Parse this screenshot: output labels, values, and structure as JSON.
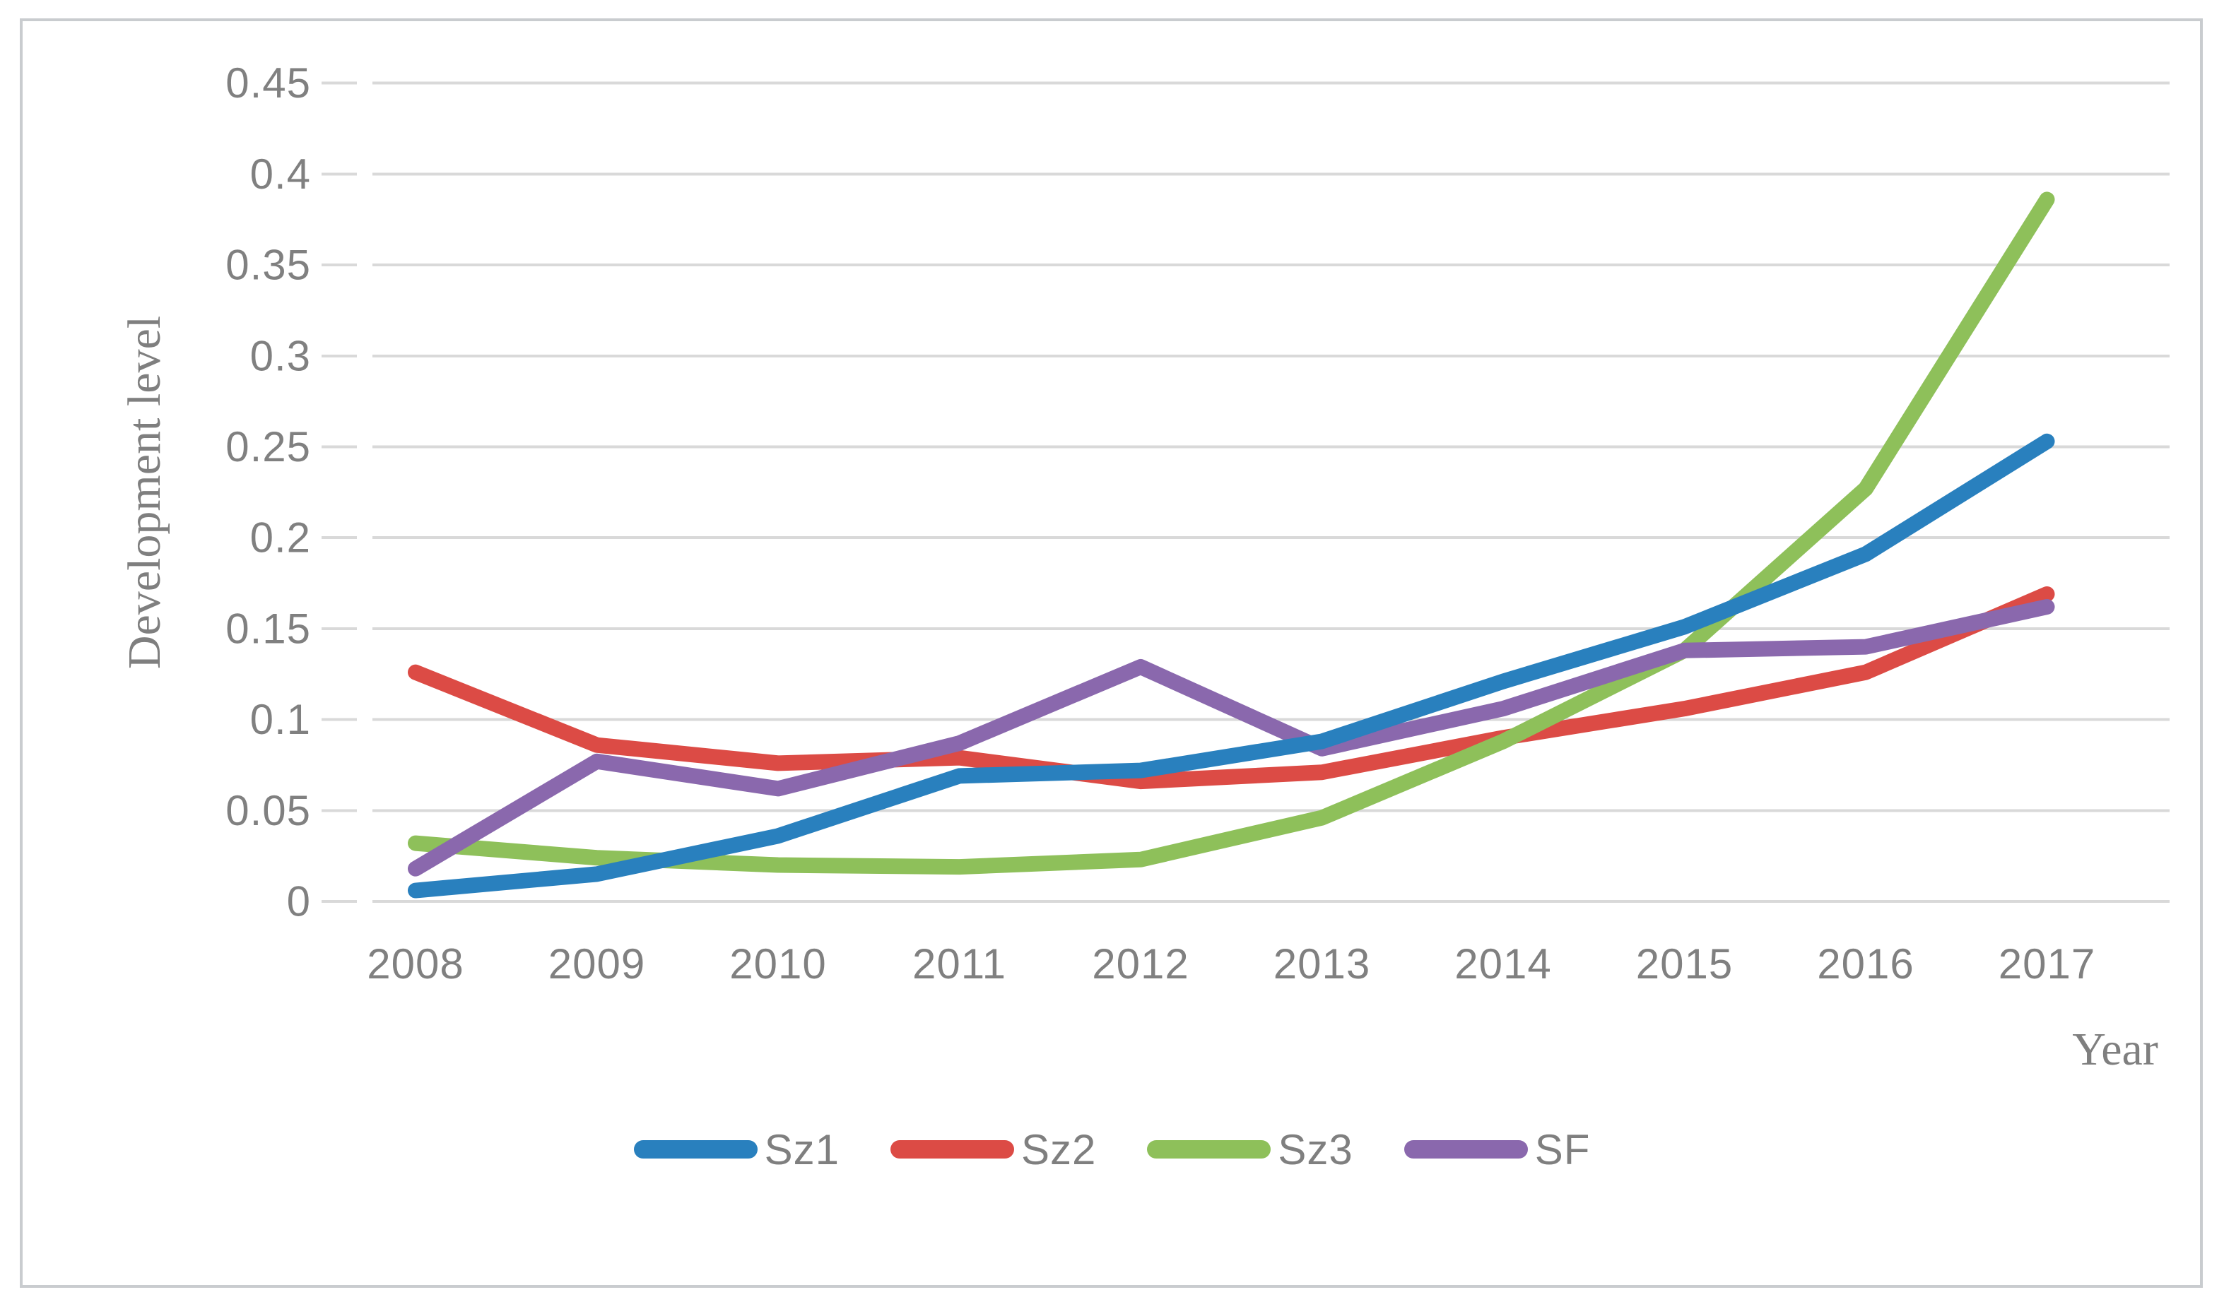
{
  "figure": {
    "background": "#FFFFFF",
    "border_color": "#C9CCCF",
    "grid_color": "#D9D9D9",
    "text_color": "#808080"
  },
  "chart_data": {
    "type": "line",
    "title": "",
    "xlabel": "Year",
    "ylabel": "Development level",
    "categories": [
      "2008",
      "2009",
      "2010",
      "2011",
      "2012",
      "2013",
      "2014",
      "2015",
      "2016",
      "2017"
    ],
    "series": [
      {
        "name": "Sz1",
        "color": "#2980BE",
        "values": [
          0.006,
          0.015,
          0.036,
          0.069,
          0.072,
          0.088,
          0.121,
          0.151,
          0.191,
          0.253
        ]
      },
      {
        "name": "Sz2",
        "color": "#DC4B45",
        "values": [
          0.126,
          0.086,
          0.076,
          0.079,
          0.066,
          0.071,
          0.09,
          0.106,
          0.126,
          0.169
        ]
      },
      {
        "name": "Sz3",
        "color": "#8EC05A",
        "values": [
          0.032,
          0.024,
          0.02,
          0.019,
          0.023,
          0.046,
          0.088,
          0.138,
          0.227,
          0.386
        ]
      },
      {
        "name": "SF",
        "color": "#8A68AD",
        "values": [
          0.018,
          0.077,
          0.062,
          0.087,
          0.129,
          0.084,
          0.106,
          0.138,
          0.14,
          0.162
        ]
      }
    ],
    "ylim": [
      0,
      0.45
    ],
    "ytick_step": 0.05,
    "ytick_labels": [
      "0",
      "0.05",
      "0.1",
      "0.15",
      "0.2",
      "0.25",
      "0.3",
      "0.35",
      "0.4",
      "0.45"
    ],
    "grid": "horizontal",
    "legend_position": "bottom",
    "legend_entries": [
      "Sz1",
      "Sz2",
      "Sz3",
      "SF"
    ],
    "draw_order": [
      "Sz2",
      "Sz3",
      "SF",
      "Sz1"
    ]
  }
}
